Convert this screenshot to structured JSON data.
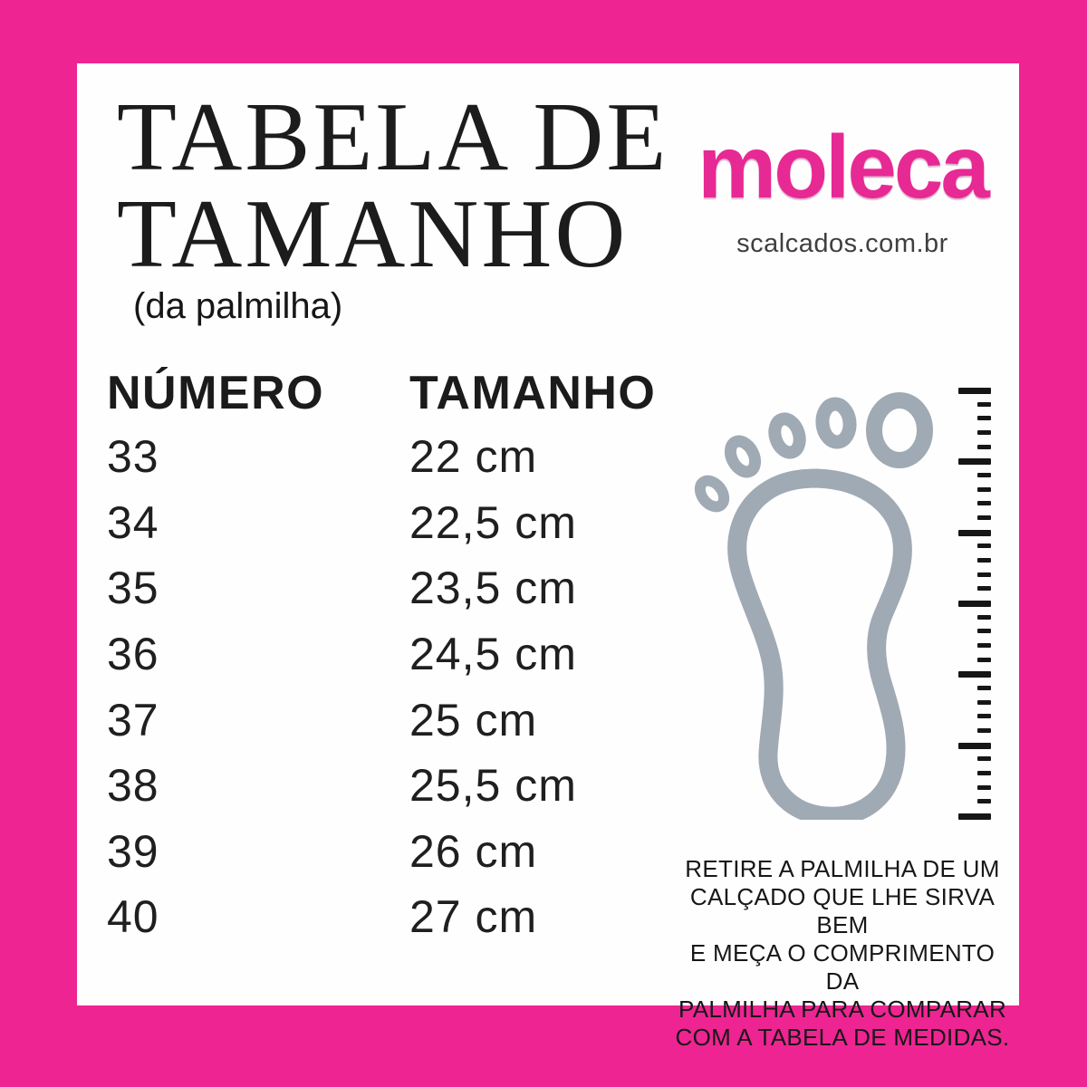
{
  "colors": {
    "frame_pink": "#EE2492",
    "logo_pink": "#E72994",
    "panel_white": "#FEFEFE",
    "text_black": "#1B1B1B",
    "muted_gray": "#3F3F3F",
    "foot_gray": "#A0AAB4"
  },
  "header": {
    "title_line1": "TABELA DE",
    "title_line2": "TAMANHO",
    "subtitle": "(da palmilha)"
  },
  "brand": {
    "logo_text": "moleca",
    "website": "scalcados.com.br"
  },
  "size_table": {
    "columns": [
      "NÚMERO",
      "TAMANHO"
    ],
    "rows": [
      {
        "numero": "33",
        "tamanho": "22 cm"
      },
      {
        "numero": "34",
        "tamanho": "22,5 cm"
      },
      {
        "numero": "35",
        "tamanho": "23,5 cm"
      },
      {
        "numero": "36",
        "tamanho": "24,5 cm"
      },
      {
        "numero": "37",
        "tamanho": "25 cm"
      },
      {
        "numero": "38",
        "tamanho": "25,5 cm"
      },
      {
        "numero": "39",
        "tamanho": "26 cm"
      },
      {
        "numero": "40",
        "tamanho": "27 cm"
      }
    ]
  },
  "instructions": {
    "lines": [
      "RETIRE A PALMILHA DE UM",
      "CALÇADO QUE LHE SIRVA BEM",
      "E MEÇA O COMPRIMENTO DA",
      "PALMILHA PARA COMPARAR",
      "COM A TABELA DE MEDIDAS."
    ]
  }
}
